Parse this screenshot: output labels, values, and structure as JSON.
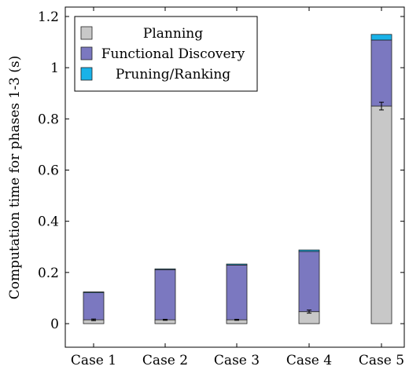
{
  "chart_data": {
    "type": "bar",
    "stacked": true,
    "title": "",
    "xlabel": "",
    "ylabel": "Computation time for phases 1-3 (s)",
    "ylim": [
      -0.05,
      1.22
    ],
    "yticks": [
      0,
      0.2,
      0.4,
      0.6,
      0.8,
      1,
      1.2
    ],
    "ytick_labels": [
      "0",
      "0.2",
      "0.4",
      "0.6",
      "0.8",
      "1",
      "1.2"
    ],
    "categories": [
      "Case 1",
      "Case 2",
      "Case 3",
      "Case 4",
      "Case 5"
    ],
    "series": [
      {
        "name": "Planning",
        "color": "#c8c8c8",
        "values": [
          0.015,
          0.015,
          0.015,
          0.047,
          0.85
        ],
        "error": [
          0.003,
          0.002,
          0.002,
          0.006,
          0.015
        ]
      },
      {
        "name": "Functional Discovery",
        "color": "#7b78c0",
        "values": [
          0.106,
          0.196,
          0.214,
          0.235,
          0.258
        ]
      },
      {
        "name": "Pruning/Ranking",
        "color": "#19b2e8",
        "values": [
          0.003,
          0.003,
          0.004,
          0.006,
          0.022
        ]
      }
    ],
    "legend_position": "top-left",
    "grid": false
  }
}
